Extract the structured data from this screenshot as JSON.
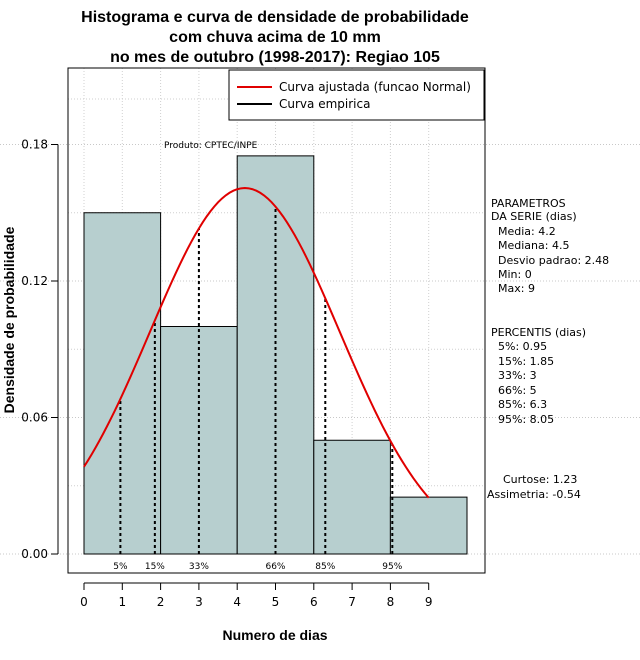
{
  "chart_data": {
    "type": "bar",
    "title_lines": [
      "Histograma e curva de densidade de probabilidade",
      "com chuva acima de 10 mm",
      "no mes de outubro (1998-2017): Regiao 105"
    ],
    "xlabel": "Numero de dias",
    "ylabel": "Densidade de probabilidade",
    "xlim": [
      0,
      10
    ],
    "ylim": [
      0,
      0.21
    ],
    "xticks": [
      0,
      1,
      2,
      3,
      4,
      5,
      6,
      7,
      8,
      9
    ],
    "yticks": [
      0.0,
      0.06,
      0.12,
      0.18
    ],
    "ytick_labels": [
      "0.00",
      "0.06",
      "0.12",
      "0.18"
    ],
    "grid": true,
    "bar_color": "#b7cfcf",
    "curve_color": "#e00000",
    "bins": [
      {
        "x0": 0,
        "x1": 2,
        "density": 0.15
      },
      {
        "x0": 2,
        "x1": 4,
        "density": 0.1
      },
      {
        "x0": 4,
        "x1": 6,
        "density": 0.175
      },
      {
        "x0": 6,
        "x1": 8,
        "density": 0.05
      },
      {
        "x0": 8,
        "x1": 10,
        "density": 0.025
      }
    ],
    "normal_fit": {
      "mean": 4.2,
      "sd": 2.48,
      "x_range": [
        0,
        9
      ]
    },
    "percentile_lines": [
      {
        "label": "5%",
        "x": 0.95
      },
      {
        "label": "15%",
        "x": 1.85
      },
      {
        "label": "33%",
        "x": 3
      },
      {
        "label": "66%",
        "x": 5
      },
      {
        "label": "85%",
        "x": 6.3
      },
      {
        "label": "95%",
        "x": 8.05
      }
    ],
    "legend": {
      "position": "top-right",
      "entries": [
        {
          "label": "Curva ajustada (funcao Normal)",
          "color": "#e00000"
        },
        {
          "label": "Curva empirica",
          "color": "#000000"
        }
      ]
    },
    "annotation": "Produto: CPTEC/INPE"
  },
  "side_panel": {
    "params_title": [
      "PARAMETROS",
      "DA SERIE (dias)"
    ],
    "params": [
      "Media: 4.2",
      "Mediana: 4.5",
      "Desvio padrao: 2.48",
      "Min: 0",
      "Max: 9"
    ],
    "pct_title": "PERCENTIS (dias)",
    "pcts": [
      "5%: 0.95",
      "15%: 1.85",
      "33%: 3",
      "66%: 5",
      "85%: 6.3",
      "95%: 8.05"
    ],
    "curtose": "Curtose: 1.23",
    "assimetria": "Assimetria: -0.54"
  }
}
